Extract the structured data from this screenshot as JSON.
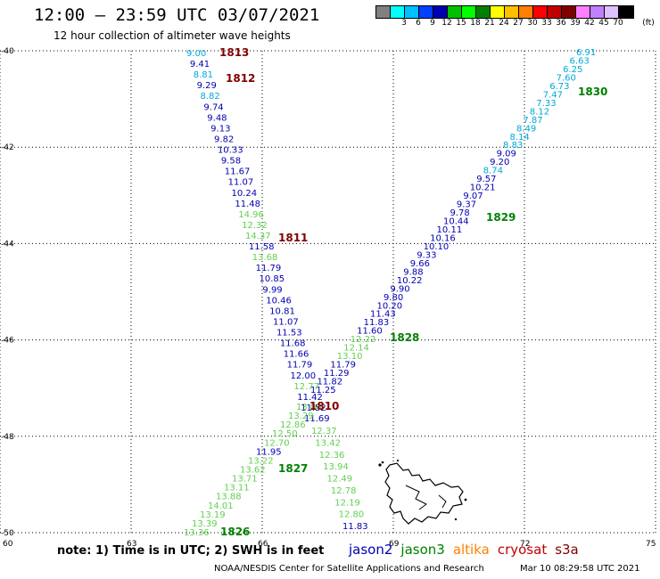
{
  "header": {
    "title": "12:00 – 23:59 UTC 03/07/2021",
    "subtitle": "12 hour collection of altimeter wave heights"
  },
  "legend": {
    "unit_label": "(ft)",
    "bins": [
      {
        "color": "#808080",
        "label": ""
      },
      {
        "color": "#00ffff",
        "label": "3"
      },
      {
        "color": "#00bfff",
        "label": "6"
      },
      {
        "color": "#0040ff",
        "label": "9"
      },
      {
        "color": "#0000b0",
        "label": "12"
      },
      {
        "color": "#00c000",
        "label": "15"
      },
      {
        "color": "#00ff00",
        "label": "18"
      },
      {
        "color": "#008000",
        "label": "21"
      },
      {
        "color": "#ffff00",
        "label": "24"
      },
      {
        "color": "#ffc000",
        "label": "27"
      },
      {
        "color": "#ff8000",
        "label": "30"
      },
      {
        "color": "#ff0000",
        "label": "33"
      },
      {
        "color": "#c00000",
        "label": "36"
      },
      {
        "color": "#800000",
        "label": "39"
      },
      {
        "color": "#ff80ff",
        "label": "42"
      },
      {
        "color": "#c080ff",
        "label": "45"
      },
      {
        "color": "#e0c0ff",
        "label": "70"
      },
      {
        "color": "#000000",
        "label": ""
      }
    ]
  },
  "axes": {
    "lat_ticks": [
      "-40",
      "-42",
      "-44",
      "-46",
      "-48",
      "-50"
    ],
    "lon_ticks": [
      "60",
      "63",
      "66",
      "69",
      "72",
      "75"
    ],
    "lat_range": [
      -50,
      -40
    ],
    "lon_range": [
      60,
      75
    ]
  },
  "colors": {
    "jason2": "#0000b0",
    "jason3": "#008000",
    "altika": "#ff8000",
    "cryosat": "#c00000",
    "s3a": "#800000",
    "sky": "#00a8d8",
    "light_green": "#60d050",
    "dark_blue": "#0000b0",
    "dark_green": "#008000",
    "dark_red": "#800000"
  },
  "passes": [
    {
      "label": "1813",
      "color": "dark_red"
    },
    {
      "label": "1812",
      "color": "dark_red"
    },
    {
      "label": "1811",
      "color": "dark_red"
    },
    {
      "label": "1810",
      "color": "dark_red"
    },
    {
      "label": "1830",
      "color": "dark_green"
    },
    {
      "label": "1829",
      "color": "dark_green"
    },
    {
      "label": "1828",
      "color": "dark_green"
    },
    {
      "label": "1827",
      "color": "dark_green"
    },
    {
      "label": "1826",
      "color": "dark_green"
    }
  ],
  "tracks": {
    "west": [
      {
        "v": "9.00",
        "c": "sky"
      },
      {
        "v": "9.41",
        "c": "dark_blue"
      },
      {
        "v": "8.81",
        "c": "sky"
      },
      {
        "v": "9.29",
        "c": "dark_blue"
      },
      {
        "v": "8.82",
        "c": "sky"
      },
      {
        "v": "9.74",
        "c": "dark_blue"
      },
      {
        "v": "9.48",
        "c": "dark_blue"
      },
      {
        "v": "9.13",
        "c": "dark_blue"
      },
      {
        "v": "9.82",
        "c": "dark_blue"
      },
      {
        "v": "10.33",
        "c": "dark_blue"
      },
      {
        "v": "9.58",
        "c": "dark_blue"
      },
      {
        "v": "11.67",
        "c": "dark_blue"
      },
      {
        "v": "11.07",
        "c": "dark_blue"
      },
      {
        "v": "10.24",
        "c": "dark_blue"
      },
      {
        "v": "11.48",
        "c": "dark_blue"
      },
      {
        "v": "14.96",
        "c": "light_green"
      },
      {
        "v": "12.32",
        "c": "light_green"
      },
      {
        "v": "14.37",
        "c": "light_green"
      },
      {
        "v": "11.58",
        "c": "dark_blue"
      },
      {
        "v": "13.68",
        "c": "light_green"
      },
      {
        "v": "11.79",
        "c": "dark_blue"
      },
      {
        "v": "10.85",
        "c": "dark_blue"
      },
      {
        "v": "9.99",
        "c": "dark_blue"
      },
      {
        "v": "10.46",
        "c": "dark_blue"
      },
      {
        "v": "10.81",
        "c": "dark_blue"
      },
      {
        "v": "11.07",
        "c": "dark_blue"
      },
      {
        "v": "11.53",
        "c": "dark_blue"
      },
      {
        "v": "11.68",
        "c": "dark_blue"
      },
      {
        "v": "11.66",
        "c": "dark_blue"
      },
      {
        "v": "11.79",
        "c": "dark_blue"
      },
      {
        "v": "12.00",
        "c": "dark_blue"
      },
      {
        "v": "12.77",
        "c": "light_green"
      },
      {
        "v": "11.42",
        "c": "dark_blue"
      },
      {
        "v": "11.52",
        "c": "dark_blue"
      },
      {
        "v": "11.69",
        "c": "dark_blue"
      }
    ],
    "west_cont": [
      {
        "v": "12.37",
        "c": "light_green"
      },
      {
        "v": "13.42",
        "c": "light_green"
      },
      {
        "v": "12.36",
        "c": "light_green"
      },
      {
        "v": "13.94",
        "c": "light_green"
      },
      {
        "v": "12.49",
        "c": "light_green"
      },
      {
        "v": "12.78",
        "c": "light_green"
      },
      {
        "v": "12.19",
        "c": "light_green"
      },
      {
        "v": "12.80",
        "c": "light_green"
      },
      {
        "v": "11.83",
        "c": "dark_blue"
      }
    ],
    "east": [
      {
        "v": "6.91",
        "c": "sky"
      },
      {
        "v": "6.63",
        "c": "sky"
      },
      {
        "v": "6.25",
        "c": "sky"
      },
      {
        "v": "7.60",
        "c": "sky"
      },
      {
        "v": "6.73",
        "c": "sky"
      },
      {
        "v": "7.47",
        "c": "sky"
      },
      {
        "v": "7.33",
        "c": "sky"
      },
      {
        "v": "8.12",
        "c": "sky"
      },
      {
        "v": "7.87",
        "c": "sky"
      },
      {
        "v": "8.49",
        "c": "sky"
      },
      {
        "v": "8.14",
        "c": "sky"
      },
      {
        "v": "8.83",
        "c": "sky"
      },
      {
        "v": "9.09",
        "c": "dark_blue"
      },
      {
        "v": "9.20",
        "c": "dark_blue"
      },
      {
        "v": "8.74",
        "c": "sky"
      },
      {
        "v": "9.57",
        "c": "dark_blue"
      },
      {
        "v": "10.21",
        "c": "dark_blue"
      },
      {
        "v": "9.07",
        "c": "dark_blue"
      },
      {
        "v": "9.37",
        "c": "dark_blue"
      },
      {
        "v": "9.78",
        "c": "dark_blue"
      },
      {
        "v": "10.44",
        "c": "dark_blue"
      },
      {
        "v": "10.11",
        "c": "dark_blue"
      },
      {
        "v": "10.16",
        "c": "dark_blue"
      },
      {
        "v": "10.10",
        "c": "dark_blue"
      },
      {
        "v": "9.33",
        "c": "dark_blue"
      },
      {
        "v": "9.66",
        "c": "dark_blue"
      },
      {
        "v": "9.88",
        "c": "dark_blue"
      },
      {
        "v": "10.22",
        "c": "dark_blue"
      },
      {
        "v": "9.90",
        "c": "dark_blue"
      },
      {
        "v": "9.80",
        "c": "dark_blue"
      },
      {
        "v": "10.20",
        "c": "dark_blue"
      },
      {
        "v": "11.43",
        "c": "dark_blue"
      },
      {
        "v": "11.83",
        "c": "dark_blue"
      },
      {
        "v": "11.60",
        "c": "dark_blue"
      },
      {
        "v": "12.22",
        "c": "light_green"
      },
      {
        "v": "12.14",
        "c": "light_green"
      },
      {
        "v": "13.10",
        "c": "light_green"
      },
      {
        "v": "11.79",
        "c": "dark_blue"
      },
      {
        "v": "11.29",
        "c": "dark_blue"
      },
      {
        "v": "11.82",
        "c": "dark_blue"
      },
      {
        "v": "11.25",
        "c": "dark_blue"
      }
    ],
    "southwest": [
      {
        "v": "13.00",
        "c": "light_green"
      },
      {
        "v": "13.29",
        "c": "light_green"
      },
      {
        "v": "12.86",
        "c": "light_green"
      },
      {
        "v": "12.50",
        "c": "light_green"
      },
      {
        "v": "12.70",
        "c": "light_green"
      },
      {
        "v": "11.95",
        "c": "dark_blue"
      },
      {
        "v": "13.22",
        "c": "light_green"
      },
      {
        "v": "13.62",
        "c": "light_green"
      },
      {
        "v": "13.71",
        "c": "light_green"
      },
      {
        "v": "13.11",
        "c": "light_green"
      },
      {
        "v": "13.88",
        "c": "light_green"
      },
      {
        "v": "14.01",
        "c": "light_green"
      },
      {
        "v": "13.19",
        "c": "light_green"
      },
      {
        "v": "13.39",
        "c": "light_green"
      },
      {
        "v": "13.36",
        "c": "light_green"
      }
    ]
  },
  "footer": {
    "note": "note: 1) Time is in UTC; 2) SWH is in feet",
    "satellites": [
      {
        "name": "jason2",
        "color": "jason2"
      },
      {
        "name": "jason3",
        "color": "jason3"
      },
      {
        "name": "altika",
        "color": "altika"
      },
      {
        "name": "cryosat",
        "color": "cryosat"
      },
      {
        "name": "s3a",
        "color": "s3a"
      }
    ],
    "credit": "NOAA/NESDIS Center for Satellite Applications and Research",
    "timestamp": "Mar 10 08:29:58 UTC 2021"
  }
}
